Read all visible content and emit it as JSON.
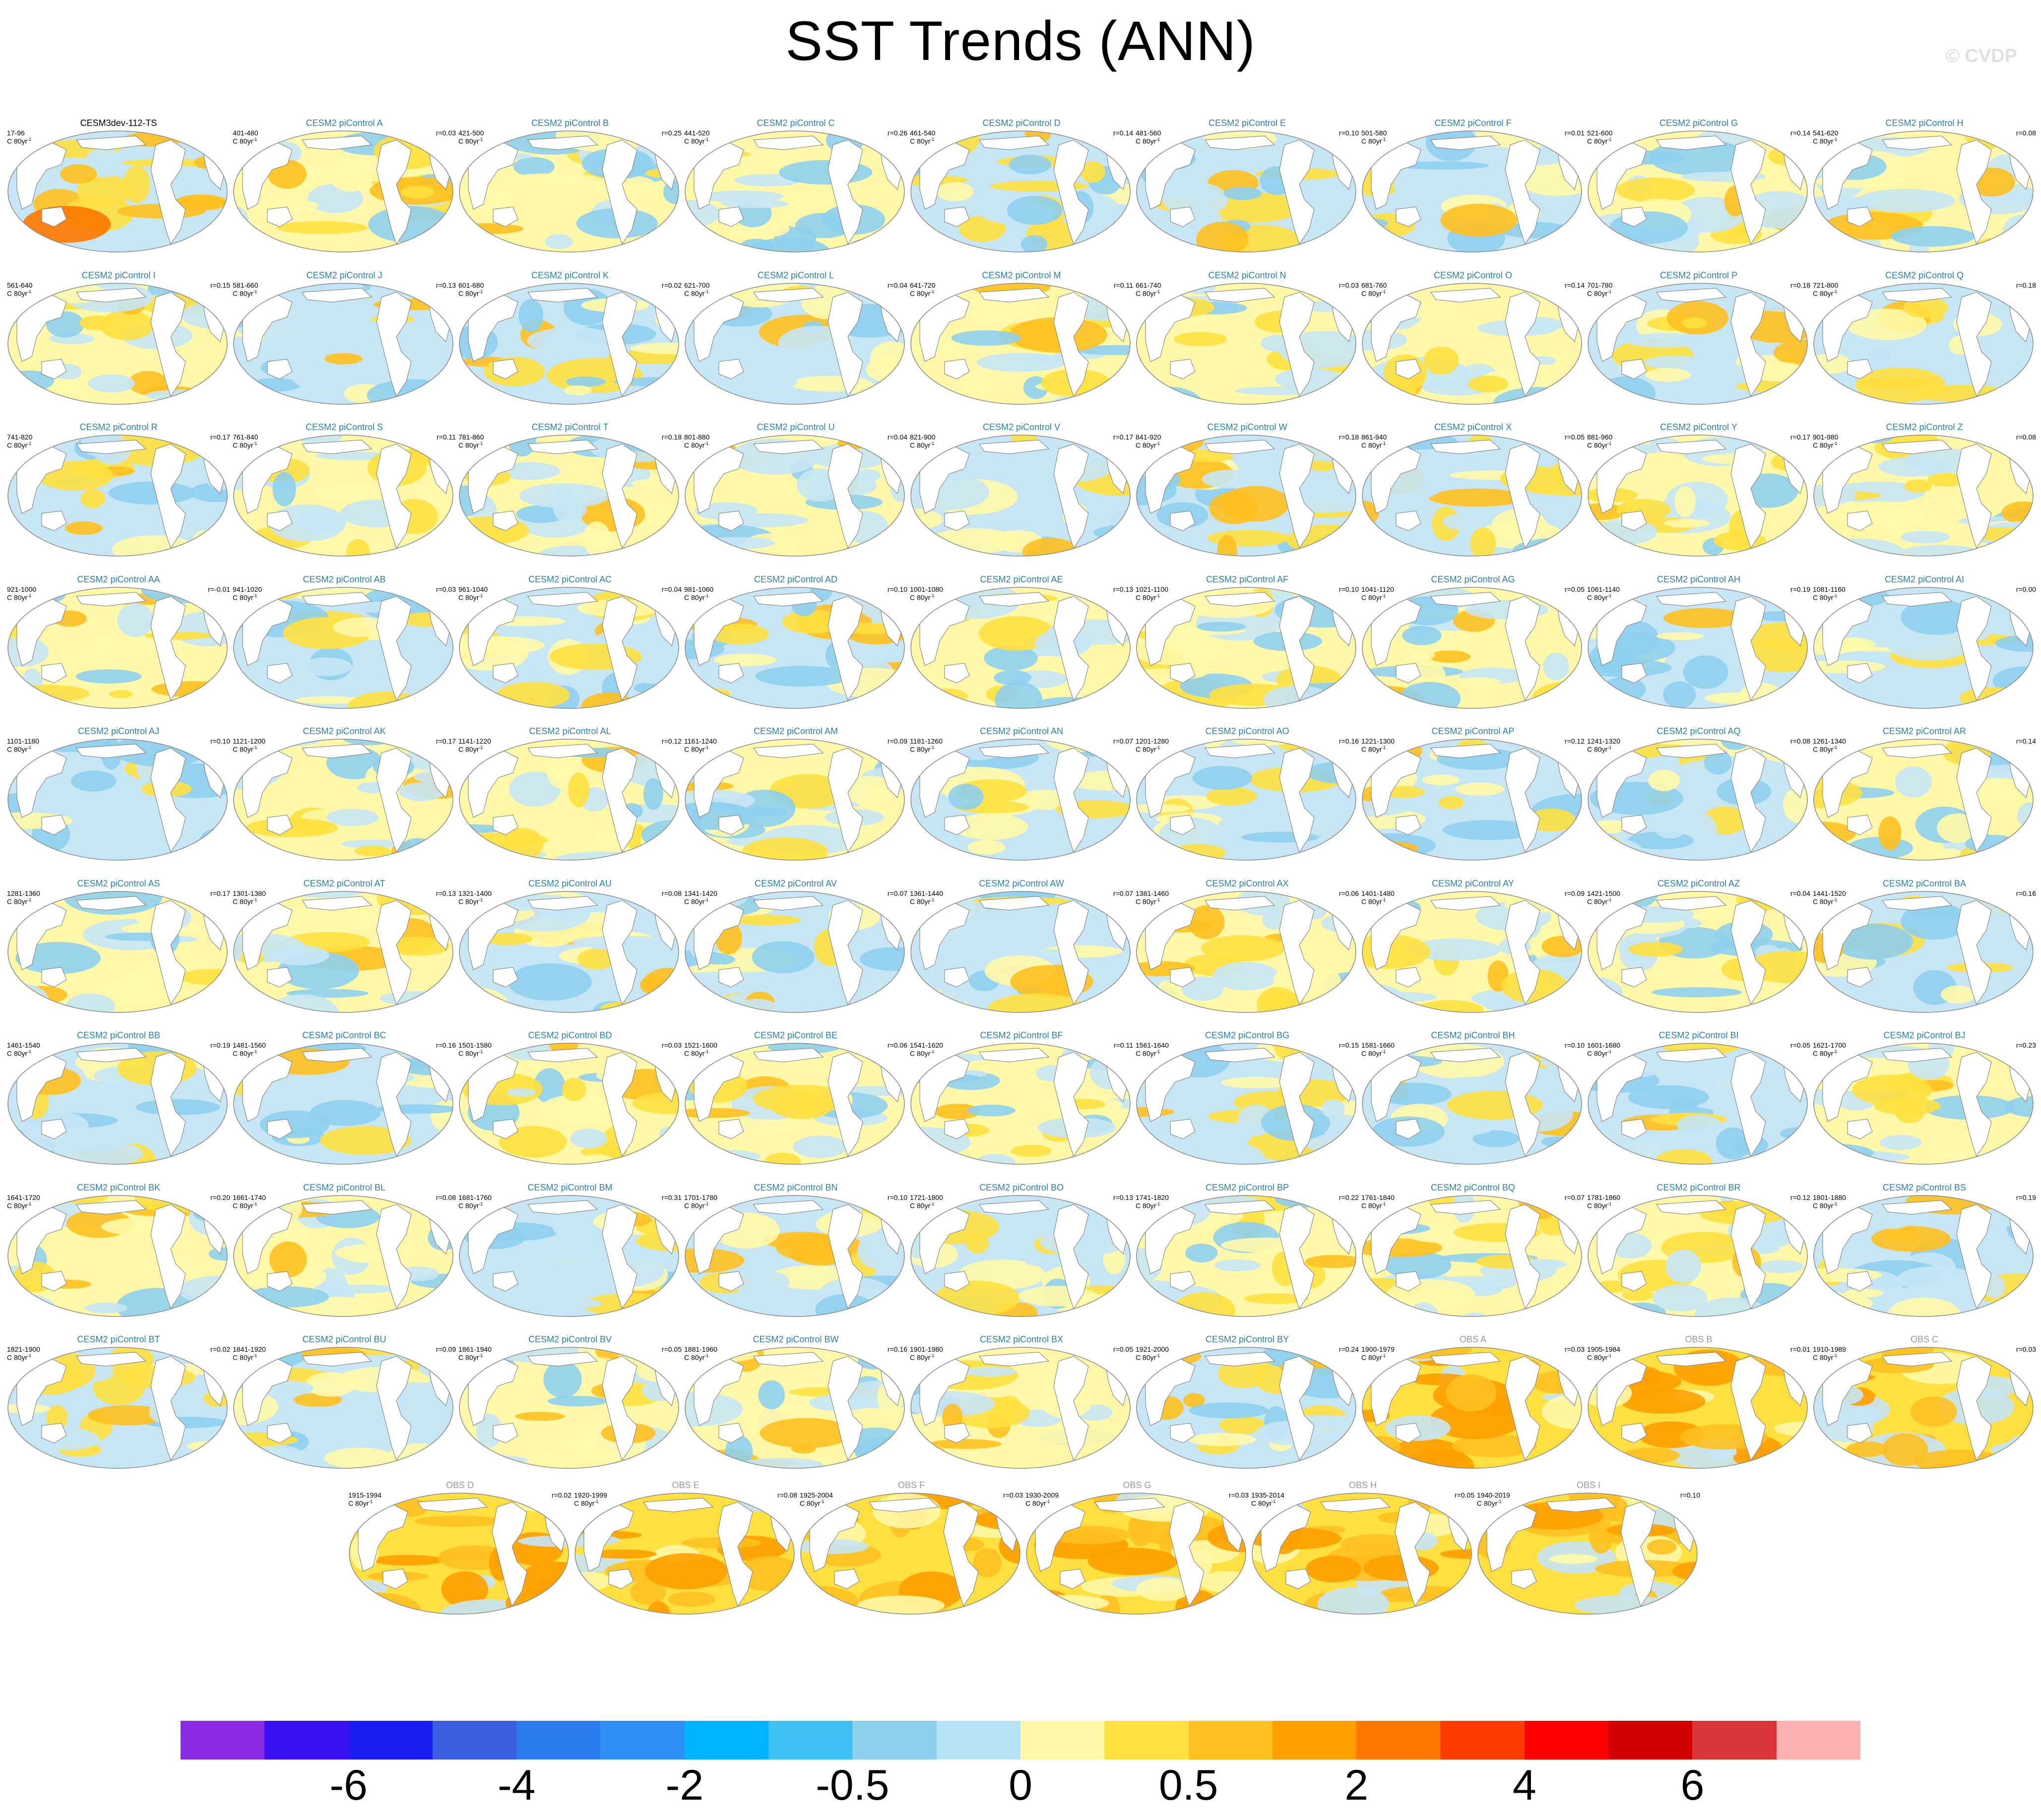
{
  "title": "SST Trends (ANN)",
  "watermark": "© CVDP",
  "units": "C 80yr",
  "units_exp": "-1",
  "panels": [
    {
      "title": "CESM3dev-112-TS",
      "years": "17-96",
      "r": ""
    },
    {
      "title": "CESM2 piControl A",
      "years": "401-480",
      "r": "r=0.03"
    },
    {
      "title": "CESM2 piControl B",
      "years": "421-500",
      "r": "r=0.25"
    },
    {
      "title": "CESM2 piControl C",
      "years": "441-520",
      "r": "r=0.26"
    },
    {
      "title": "CESM2 piControl D",
      "years": "461-540",
      "r": "r=0.14"
    },
    {
      "title": "CESM2 piControl E",
      "years": "481-560",
      "r": "r=0.10"
    },
    {
      "title": "CESM2 piControl F",
      "years": "501-580",
      "r": "r=0.01"
    },
    {
      "title": "CESM2 piControl G",
      "years": "521-600",
      "r": "r=0.14"
    },
    {
      "title": "CESM2 piControl H",
      "years": "541-620",
      "r": "r=0.08"
    },
    {
      "title": "CESM2 piControl I",
      "years": "561-640",
      "r": "r=0.15"
    },
    {
      "title": "CESM2 piControl J",
      "years": "581-660",
      "r": "r=0.13"
    },
    {
      "title": "CESM2 piControl K",
      "years": "601-680",
      "r": "r=0.02"
    },
    {
      "title": "CESM2 piControl L",
      "years": "621-700",
      "r": "r=0.04"
    },
    {
      "title": "CESM2 piControl M",
      "years": "641-720",
      "r": "r=0.11"
    },
    {
      "title": "CESM2 piControl N",
      "years": "661-740",
      "r": "r=0.03"
    },
    {
      "title": "CESM2 piControl O",
      "years": "681-760",
      "r": "r=0.14"
    },
    {
      "title": "CESM2 piControl P",
      "years": "701-780",
      "r": "r=0.18"
    },
    {
      "title": "CESM2 piControl Q",
      "years": "721-800",
      "r": "r=0.18"
    },
    {
      "title": "CESM2 piControl R",
      "years": "741-820",
      "r": "r=0.17"
    },
    {
      "title": "CESM2 piControl S",
      "years": "761-840",
      "r": "r=0.11"
    },
    {
      "title": "CESM2 piControl T",
      "years": "781-860",
      "r": "r=0.18"
    },
    {
      "title": "CESM2 piControl U",
      "years": "801-880",
      "r": "r=0.04"
    },
    {
      "title": "CESM2 piControl V",
      "years": "821-900",
      "r": "r=0.17"
    },
    {
      "title": "CESM2 piControl W",
      "years": "841-920",
      "r": "r=0.18"
    },
    {
      "title": "CESM2 piControl X",
      "years": "861-940",
      "r": "r=0.05"
    },
    {
      "title": "CESM2 piControl Y",
      "years": "881-960",
      "r": "r=0.17"
    },
    {
      "title": "CESM2 piControl Z",
      "years": "901-980",
      "r": "r=0.08"
    },
    {
      "title": "CESM2 piControl AA",
      "years": "921-1000",
      "r": "r=-0.01"
    },
    {
      "title": "CESM2 piControl AB",
      "years": "941-1020",
      "r": "r=0.03"
    },
    {
      "title": "CESM2 piControl AC",
      "years": "961-1040",
      "r": "r=0.04"
    },
    {
      "title": "CESM2 piControl AD",
      "years": "981-1060",
      "r": "r=0.10"
    },
    {
      "title": "CESM2 piControl AE",
      "years": "1001-1080",
      "r": "r=0.13"
    },
    {
      "title": "CESM2 piControl AF",
      "years": "1021-1100",
      "r": "r=0.10"
    },
    {
      "title": "CESM2 piControl AG",
      "years": "1041-1120",
      "r": "r=0.05"
    },
    {
      "title": "CESM2 piControl AH",
      "years": "1061-1140",
      "r": "r=0.19"
    },
    {
      "title": "CESM2 piControl AI",
      "years": "1081-1160",
      "r": "r=0.00"
    },
    {
      "title": "CESM2 piControl AJ",
      "years": "1101-1180",
      "r": "r=0.10"
    },
    {
      "title": "CESM2 piControl AK",
      "years": "1121-1200",
      "r": "r=0.17"
    },
    {
      "title": "CESM2 piControl AL",
      "years": "1141-1220",
      "r": "r=0.12"
    },
    {
      "title": "CESM2 piControl AM",
      "years": "1161-1240",
      "r": "r=0.09"
    },
    {
      "title": "CESM2 piControl AN",
      "years": "1181-1260",
      "r": "r=0.07"
    },
    {
      "title": "CESM2 piControl AO",
      "years": "1201-1280",
      "r": "r=0.16"
    },
    {
      "title": "CESM2 piControl AP",
      "years": "1221-1300",
      "r": "r=0.12"
    },
    {
      "title": "CESM2 piControl AQ",
      "years": "1241-1320",
      "r": "r=0.08"
    },
    {
      "title": "CESM2 piControl AR",
      "years": "1261-1340",
      "r": "r=0.14"
    },
    {
      "title": "CESM2 piControl AS",
      "years": "1281-1360",
      "r": "r=0.17"
    },
    {
      "title": "CESM2 piControl AT",
      "years": "1301-1380",
      "r": "r=0.13"
    },
    {
      "title": "CESM2 piControl AU",
      "years": "1321-1400",
      "r": "r=0.08"
    },
    {
      "title": "CESM2 piControl AV",
      "years": "1341-1420",
      "r": "r=0.07"
    },
    {
      "title": "CESM2 piControl AW",
      "years": "1361-1440",
      "r": "r=0.07"
    },
    {
      "title": "CESM2 piControl AX",
      "years": "1381-1460",
      "r": "r=0.06"
    },
    {
      "title": "CESM2 piControl AY",
      "years": "1401-1480",
      "r": "r=0.09"
    },
    {
      "title": "CESM2 piControl AZ",
      "years": "1421-1500",
      "r": "r=0.04"
    },
    {
      "title": "CESM2 piControl BA",
      "years": "1441-1520",
      "r": "r=0.16"
    },
    {
      "title": "CESM2 piControl BB",
      "years": "1461-1540",
      "r": "r=0.19"
    },
    {
      "title": "CESM2 piControl BC",
      "years": "1481-1560",
      "r": "r=0.16"
    },
    {
      "title": "CESM2 piControl BD",
      "years": "1501-1580",
      "r": "r=0.03"
    },
    {
      "title": "CESM2 piControl BE",
      "years": "1521-1600",
      "r": "r=0.06"
    },
    {
      "title": "CESM2 piControl BF",
      "years": "1541-1620",
      "r": "r=0.11"
    },
    {
      "title": "CESM2 piControl BG",
      "years": "1561-1640",
      "r": "r=0.15"
    },
    {
      "title": "CESM2 piControl BH",
      "years": "1581-1660",
      "r": "r=0.10"
    },
    {
      "title": "CESM2 piControl BI",
      "years": "1601-1680",
      "r": "r=0.05"
    },
    {
      "title": "CESM2 piControl BJ",
      "years": "1621-1700",
      "r": "r=0.23"
    },
    {
      "title": "CESM2 piControl BK",
      "years": "1641-1720",
      "r": "r=0.20"
    },
    {
      "title": "CESM2 piControl BL",
      "years": "1661-1740",
      "r": "r=0.08"
    },
    {
      "title": "CESM2 piControl BM",
      "years": "1681-1760",
      "r": "r=0.31"
    },
    {
      "title": "CESM2 piControl BN",
      "years": "1701-1780",
      "r": "r=0.10"
    },
    {
      "title": "CESM2 piControl BO",
      "years": "1721-1800",
      "r": "r=0.13"
    },
    {
      "title": "CESM2 piControl BP",
      "years": "1741-1820",
      "r": "r=0.22"
    },
    {
      "title": "CESM2 piControl BQ",
      "years": "1761-1840",
      "r": "r=0.07"
    },
    {
      "title": "CESM2 piControl BR",
      "years": "1781-1860",
      "r": "r=0.12"
    },
    {
      "title": "CESM2 piControl BS",
      "years": "1801-1880",
      "r": "r=0.19"
    },
    {
      "title": "CESM2 piControl BT",
      "years": "1821-1900",
      "r": "r=0.02"
    },
    {
      "title": "CESM2 piControl BU",
      "years": "1841-1920",
      "r": "r=0.09"
    },
    {
      "title": "CESM2 piControl BV",
      "years": "1861-1940",
      "r": "r=0.05"
    },
    {
      "title": "CESM2 piControl BW",
      "years": "1881-1960",
      "r": "r=0.16"
    },
    {
      "title": "CESM2 piControl BX",
      "years": "1901-1980",
      "r": "r=0.05"
    },
    {
      "title": "CESM2 piControl BY",
      "years": "1921-2000",
      "r": "r=0.24"
    },
    {
      "title": "OBS A",
      "years": "1900-1979",
      "r": "r=0.03"
    },
    {
      "title": "OBS B",
      "years": "1905-1984",
      "r": "r=0.01"
    },
    {
      "title": "OBS C",
      "years": "1910-1989",
      "r": "r=0.03"
    },
    {
      "title": "OBS D",
      "years": "1915-1994",
      "r": "r=0.02"
    },
    {
      "title": "OBS E",
      "years": "1920-1999",
      "r": "r=0.08"
    },
    {
      "title": "OBS F",
      "years": "1925-2004",
      "r": "r=0.03"
    },
    {
      "title": "OBS G",
      "years": "1930-2009",
      "r": "r=0.03"
    },
    {
      "title": "OBS H",
      "years": "1935-2014",
      "r": "r=0.05"
    },
    {
      "title": "OBS I",
      "years": "1940-2019",
      "r": "r=0.10"
    }
  ],
  "colorbar": {
    "colors": [
      "#8a2be2",
      "#3a10f5",
      "#1a1df0",
      "#3a5ee0",
      "#2a7cf0",
      "#2d90f5",
      "#00b4ff",
      "#3ec0f2",
      "#8ecfee",
      "#b8e2f5",
      "#fff8a8",
      "#ffe040",
      "#ffc020",
      "#ffa000",
      "#ff7800",
      "#ff3c00",
      "#ff0000",
      "#d00000",
      "#d83838",
      "#ffb0b0"
    ],
    "labels": [
      "-6",
      "-4",
      "-2",
      "-0.5",
      "0",
      "0.5",
      "2",
      "4",
      "6"
    ]
  }
}
